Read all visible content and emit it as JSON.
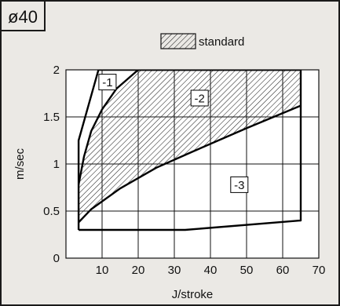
{
  "colors": {
    "background": "#ebe9e5",
    "border": "#1a1a1a",
    "plot_bg": "#ffffff",
    "grid": "#111111",
    "hatch": "#222222"
  },
  "badge": {
    "label": "ø40"
  },
  "legend": {
    "label": "standard"
  },
  "chart_data": {
    "type": "area",
    "xlabel": "J/stroke",
    "ylabel": "m/sec",
    "xlim": [
      0,
      70
    ],
    "ylim": [
      0,
      2
    ],
    "grid": true,
    "x_ticks": [
      10,
      20,
      30,
      40,
      50,
      60,
      70
    ],
    "y_ticks": [
      0,
      0.5,
      1,
      1.5,
      2
    ],
    "x_tick_labels": [
      "10",
      "20",
      "30",
      "40",
      "50",
      "60",
      "70"
    ],
    "y_tick_labels": [
      "0",
      "0.5",
      "1",
      "1.5",
      "2"
    ],
    "legend_position": "top-right",
    "series": [
      {
        "name": "standard",
        "hatched": true,
        "upper": [
          [
            3.5,
            0.78
          ],
          [
            5,
            1.08
          ],
          [
            7,
            1.35
          ],
          [
            10,
            1.58
          ],
          [
            14,
            1.8
          ],
          [
            20,
            2.0
          ],
          [
            65,
            2.0
          ]
        ],
        "lower": [
          [
            3.5,
            0.38
          ],
          [
            7,
            0.52
          ],
          [
            15,
            0.74
          ],
          [
            25,
            0.96
          ],
          [
            35,
            1.13
          ],
          [
            50,
            1.38
          ],
          [
            65,
            1.62
          ]
        ]
      },
      {
        "name": "outline",
        "hatched": false,
        "points": [
          [
            3.5,
            0.3
          ],
          [
            3.5,
            1.25
          ],
          [
            9,
            2.0
          ],
          [
            65,
            2.0
          ],
          [
            65,
            0.4
          ],
          [
            33,
            0.3
          ],
          [
            3.5,
            0.3
          ]
        ]
      }
    ],
    "annotations": [
      {
        "label": "-1",
        "x": 11.5,
        "y": 1.87
      },
      {
        "label": "-2",
        "x": 37,
        "y": 1.7
      },
      {
        "label": "-3",
        "x": 48,
        "y": 0.78
      }
    ]
  }
}
